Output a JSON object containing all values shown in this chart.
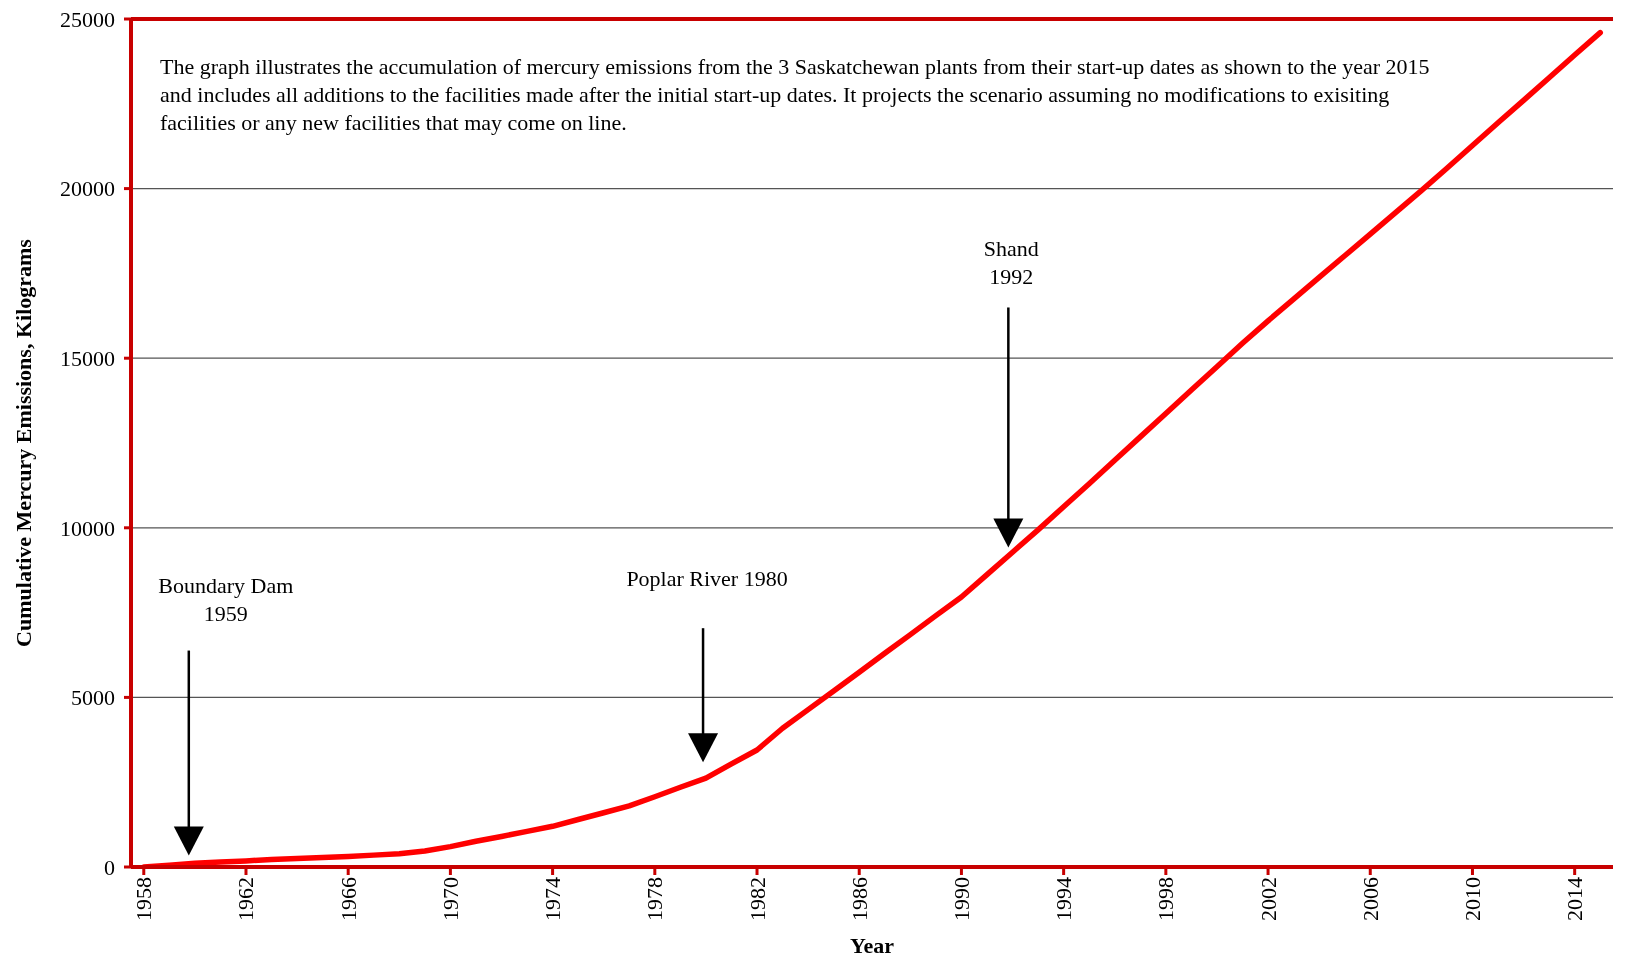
{
  "chart_data": {
    "type": "line",
    "xlabel": "Year",
    "ylabel": "Cumulative Mercury Emissions, Kilograms",
    "annotations": [
      "The graph illustrates the accumulation of mercury emissions from the 3 Saskatchewan plants from their start-up dates as shown to the year 2015 and includes all additions to the facilities made after the initial start-up dates. It projects the scenario assuming no modifications to exisiting facilities or any new facilities that may come on line.",
      "Boundary Dam\n1959",
      "Poplar River 1980",
      "Shand\n1992"
    ],
    "x": [
      1958,
      1959,
      1960,
      1961,
      1962,
      1963,
      1964,
      1965,
      1966,
      1967,
      1968,
      1969,
      1970,
      1971,
      1972,
      1973,
      1974,
      1975,
      1976,
      1977,
      1978,
      1979,
      1980,
      1981,
      1982,
      1983,
      1984,
      1985,
      1986,
      1987,
      1988,
      1989,
      1990,
      1991,
      1992,
      1993,
      1994,
      1995,
      1996,
      1997,
      1998,
      1999,
      2000,
      2001,
      2002,
      2003,
      2004,
      2005,
      2006,
      2007,
      2008,
      2009,
      2010,
      2011,
      2012,
      2013,
      2014,
      2015
    ],
    "series": [
      {
        "color": "#ff0000",
        "values": [
          0,
          50,
          110,
          150,
          180,
          220,
          250,
          280,
          310,
          350,
          390,
          470,
          600,
          760,
          900,
          1050,
          1200,
          1400,
          1600,
          1800,
          2070,
          2350,
          2620,
          3040,
          3450,
          4090,
          4640,
          5190,
          5740,
          6300,
          6850,
          7410,
          7960,
          8620,
          9280,
          9940,
          10620,
          11300,
          11990,
          12680,
          13370,
          14060,
          14750,
          15440,
          16100,
          16740,
          17380,
          18020,
          18660,
          19300,
          19940,
          20600,
          21270,
          21940,
          22600,
          23270,
          23940,
          24600
        ]
      }
    ],
    "xlim": [
      1957.5,
      2015.5
    ],
    "xticks": [
      1958,
      1962,
      1966,
      1970,
      1974,
      1978,
      1982,
      1986,
      1990,
      1994,
      1998,
      2002,
      2006,
      2010,
      2014
    ],
    "ylim": [
      0,
      25000
    ],
    "yticks": [
      0,
      5000,
      10000,
      15000,
      20000,
      25000
    ],
    "grid": "y"
  }
}
